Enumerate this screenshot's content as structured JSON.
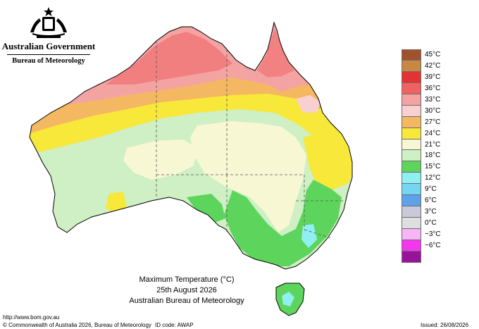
{
  "header": {
    "government": "Australian Government",
    "agency": "Bureau of Meteorology"
  },
  "legend": {
    "items": [
      {
        "label": "45°C",
        "color": "#a0522d"
      },
      {
        "label": "42°C",
        "color": "#c88844"
      },
      {
        "label": "39°C",
        "color": "#e33232"
      },
      {
        "label": "36°C",
        "color": "#f06262"
      },
      {
        "label": "33°C",
        "color": "#f4a3a3"
      },
      {
        "label": "30°C",
        "color": "#f9d0d0"
      },
      {
        "label": "27°C",
        "color": "#f5b862"
      },
      {
        "label": "24°C",
        "color": "#f7e83a"
      },
      {
        "label": "21°C",
        "color": "#f8f7d3"
      },
      {
        "label": "18°C",
        "color": "#cfefc4"
      },
      {
        "label": "15°C",
        "color": "#5dd55d"
      },
      {
        "label": "12°C",
        "color": "#8feff2"
      },
      {
        "label": "9°C",
        "color": "#74d6f2"
      },
      {
        "label": "6°C",
        "color": "#5ea3ea"
      },
      {
        "label": "3°C",
        "color": "#c9c9d9"
      },
      {
        "label": "0°C",
        "color": "#dfdfdf"
      },
      {
        "label": "−3°C",
        "color": "#f6b6f6"
      },
      {
        "label": "−6°C",
        "color": "#f238ed"
      },
      {
        "label": "",
        "color": "#98139a"
      }
    ]
  },
  "title": {
    "line1": "Maximum Temperature (°C)",
    "line2": "25th August 2026",
    "line3": "Australian Bureau of Meteorology"
  },
  "footer": {
    "url": "http://www.bom.gov.au",
    "copyright": "© Commonwealth of Australia 2026, Bureau of Meteorology",
    "id_code": "ID code: AWAP",
    "issued": "Issued: 26/08/2026"
  }
}
